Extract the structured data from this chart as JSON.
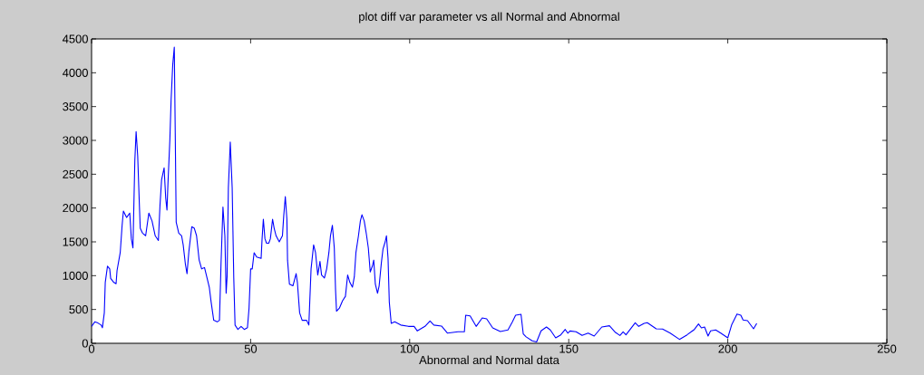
{
  "chart_data": {
    "type": "line",
    "title": "plot diff var parameter vs all Normal and Abnormal",
    "xlabel": "Abnormal  and   Normal data",
    "xlim": [
      0,
      250
    ],
    "xticks": [
      0,
      50,
      100,
      150,
      200,
      250
    ],
    "ylim": [
      0,
      4500
    ],
    "yticks": [
      0,
      500,
      1000,
      1500,
      2000,
      2500,
      3000,
      3500,
      4000,
      4500
    ],
    "grid": false,
    "series": [
      {
        "color": "#0000ff",
        "x": [
          0,
          1,
          2,
          3,
          3.4,
          4,
          4.3,
          5,
          5.7,
          6,
          7,
          7.7,
          8,
          9,
          9.6,
          10,
          11,
          12,
          12.5,
          13,
          13.6,
          14,
          14.5,
          15,
          15.3,
          16,
          17,
          18,
          19,
          20,
          21,
          21.5,
          22,
          22.8,
          23.3,
          23.7,
          24,
          24.6,
          25,
          25.5,
          26,
          26.3,
          26.6,
          27.4,
          28.3,
          28.8,
          29.5,
          30,
          30.6,
          31.5,
          32.3,
          33,
          33.8,
          34.6,
          35.5,
          36.3,
          37,
          37.6,
          38.4,
          39.5,
          40.2,
          40.7,
          41.3,
          41.9,
          42.3,
          42.6,
          43,
          43.6,
          44.2,
          44.7,
          45.1,
          46,
          47,
          48,
          49,
          49.5,
          50,
          50.5,
          51.1,
          51.9,
          53.3,
          53.6,
          54,
          54.5,
          55,
          55.7,
          56.2,
          56.9,
          57.4,
          58,
          59,
          60,
          60.4,
          60.9,
          61.4,
          61.6,
          62.2,
          63.3,
          64.3,
          64.7,
          65.4,
          66.2,
          67.6,
          68.3,
          68.6,
          69,
          69.8,
          70.4,
          71.1,
          71.8,
          72.3,
          73.2,
          73.9,
          74.6,
          75.1,
          75.7,
          76.3,
          76.7,
          77,
          77.9,
          78.9,
          79.8,
          80.5,
          81.2,
          82,
          82.6,
          83.1,
          83.9,
          84.5,
          85,
          85.7,
          86.4,
          87,
          87.6,
          88.3,
          88.7,
          89.2,
          89.9,
          90.4,
          91.1,
          91.6,
          92.3,
          92.7,
          93.2,
          93.6,
          94.2,
          95.3,
          97.2,
          99.6,
          101.4,
          102.4,
          104.8,
          106.4,
          107.6,
          110,
          111.9,
          115.2,
          117.2,
          117.6,
          119,
          120.9,
          122.8,
          124.2,
          126.1,
          128.5,
          130.9,
          132.3,
          133.3,
          135,
          135.7,
          136.6,
          138.5,
          139.9,
          141.3,
          143,
          144.2,
          145.9,
          147.5,
          148.9,
          149.7,
          150.4,
          152.3,
          154.2,
          156.1,
          158,
          160.4,
          162.8,
          164.7,
          166.1,
          167.1,
          168,
          170.9,
          172,
          173.7,
          174.7,
          177.5,
          179.5,
          181.9,
          184.8,
          187.2,
          189.5,
          190.8,
          191.7,
          192.7,
          193.8,
          194.6,
          196.2,
          197.8,
          200,
          201.2,
          202.9,
          204.1,
          204.8,
          206.2,
          208.1,
          209.1
        ],
        "values": [
          250,
          317,
          300,
          270,
          230,
          450,
          900,
          1140,
          1100,
          960,
          900,
          880,
          1075,
          1340,
          1745,
          1955,
          1860,
          1925,
          1545,
          1410,
          2705,
          3130,
          2770,
          2080,
          1700,
          1630,
          1590,
          1925,
          1810,
          1590,
          1520,
          2035,
          2415,
          2595,
          2150,
          1970,
          2350,
          3000,
          3600,
          4110,
          4380,
          3110,
          1790,
          1630,
          1590,
          1455,
          1165,
          1030,
          1365,
          1725,
          1700,
          1590,
          1235,
          1100,
          1120,
          965,
          830,
          605,
          340,
          317,
          340,
          1190,
          2015,
          1590,
          740,
          985,
          2300,
          2975,
          2300,
          965,
          270,
          205,
          250,
          205,
          230,
          520,
          1100,
          1100,
          1340,
          1275,
          1255,
          1545,
          1835,
          1545,
          1480,
          1480,
          1545,
          1835,
          1700,
          1590,
          1500,
          1590,
          1880,
          2170,
          1835,
          1230,
          875,
          850,
          1030,
          900,
          450,
          340,
          340,
          270,
          630,
          1100,
          1455,
          1340,
          1010,
          1210,
          1010,
          965,
          1100,
          1340,
          1590,
          1745,
          1410,
          785,
          475,
          520,
          630,
          695,
          1010,
          900,
          830,
          985,
          1340,
          1590,
          1810,
          1900,
          1810,
          1610,
          1410,
          1055,
          1145,
          1230,
          875,
          740,
          850,
          1190,
          1390,
          1500,
          1590,
          1255,
          605,
          295,
          317,
          270,
          250,
          250,
          183,
          250,
          330,
          270,
          255,
          150,
          170,
          170,
          415,
          405,
          250,
          375,
          362,
          228,
          175,
          197,
          317,
          415,
          429,
          140,
          95,
          38,
          20,
          185,
          241,
          197,
          80,
          125,
          205,
          150,
          183,
          170,
          116,
          150,
          107,
          241,
          259,
          160,
          116,
          170,
          125,
          304,
          250,
          295,
          304,
          214,
          210,
          150,
          58,
          125,
          205,
          286,
          228,
          241,
          107,
          183,
          197,
          150,
          80,
          270,
          433,
          415,
          344,
          335,
          214,
          295
        ]
      }
    ]
  }
}
